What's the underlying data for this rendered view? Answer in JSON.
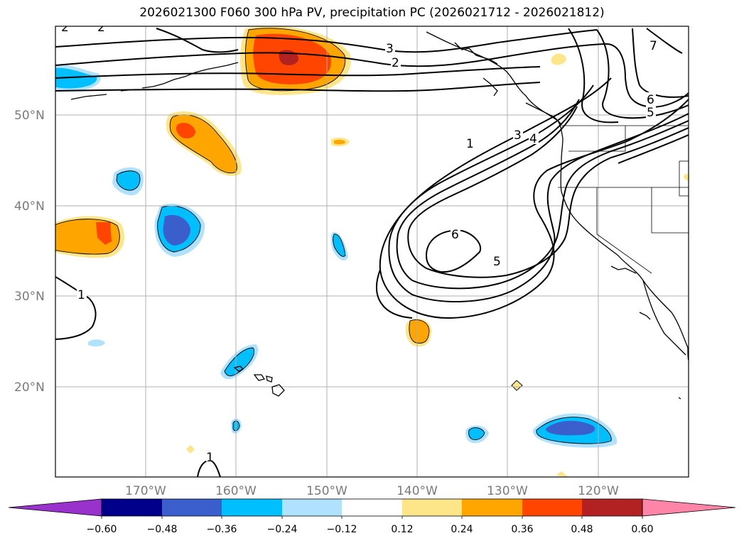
{
  "title": "2026021300 F060 300 hPa PV, precipitation PC (2026021712 - 2026021812)",
  "axes": {
    "lat_labels": [
      "50°N",
      "40°N",
      "30°N",
      "20°N"
    ],
    "lon_labels": [
      "170°W",
      "160°W",
      "150°W",
      "140°W",
      "130°W",
      "120°W"
    ]
  },
  "pv_contour_labels": [
    "2",
    "2",
    "3",
    "2",
    "1",
    "3",
    "4",
    "6",
    "5",
    "6",
    "5",
    "7",
    "1",
    "1"
  ],
  "colorbar": {
    "ticks": [
      "−0.60",
      "−0.48",
      "−0.36",
      "−0.24",
      "−0.12",
      "0.12",
      "0.24",
      "0.36",
      "0.48",
      "0.60"
    ],
    "colors": [
      "#9932cc",
      "#00008b",
      "#3a5fcd",
      "#00bfff",
      "#b0e2ff",
      "#ffffff",
      "#fde68a",
      "#ffa500",
      "#ff4500",
      "#b22222",
      "#ff85a8"
    ]
  }
}
